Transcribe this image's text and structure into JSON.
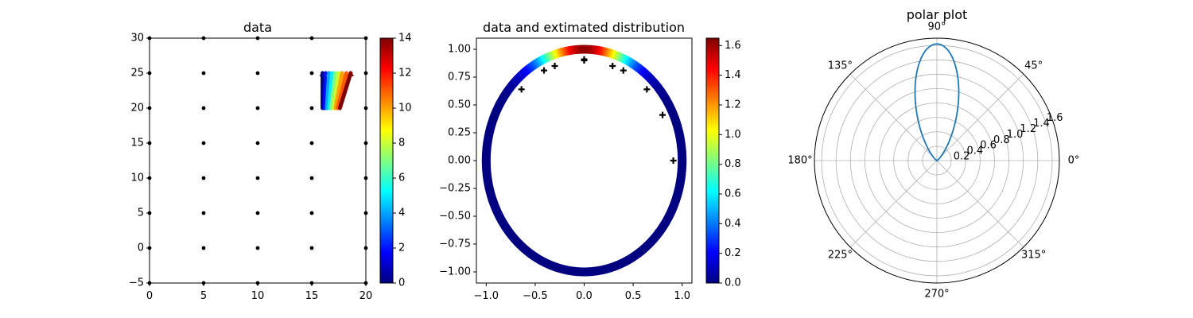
{
  "chart_data": [
    {
      "type": "scatter",
      "title": "data",
      "xlim": [
        0,
        20
      ],
      "ylim": [
        -5,
        30
      ],
      "xticks": [
        0,
        5,
        10,
        15,
        20
      ],
      "yticks": [
        -5,
        0,
        5,
        10,
        15,
        20,
        25,
        30
      ],
      "grid": false,
      "series": [
        {
          "marker": "dot",
          "color": "#000000",
          "x": [
            0,
            5,
            10,
            15,
            20,
            0,
            5,
            10,
            15,
            20,
            0,
            5,
            10,
            15,
            20,
            0,
            5,
            10,
            15,
            20,
            0,
            5,
            10,
            15,
            20,
            0,
            5,
            10,
            15,
            20,
            0,
            5,
            10,
            15,
            20,
            0,
            5,
            10,
            15,
            20
          ],
          "y": [
            -5,
            -5,
            -5,
            -5,
            -5,
            0,
            0,
            0,
            0,
            0,
            5,
            5,
            5,
            5,
            5,
            10,
            10,
            10,
            10,
            10,
            15,
            15,
            15,
            15,
            15,
            20,
            20,
            20,
            20,
            20,
            25,
            25,
            25,
            25,
            25,
            30,
            30,
            30,
            30,
            30
          ]
        }
      ],
      "fan_arrows": {
        "colormap": "jet",
        "origins_x": [
          16.0,
          16.2,
          16.4,
          16.6,
          16.8,
          17.0,
          17.2,
          17.4,
          17.6
        ],
        "base_y": 20,
        "top_y": 25,
        "colors": [
          0,
          2,
          4,
          5,
          7,
          8,
          10,
          11,
          14
        ],
        "lean": [
          0.0,
          0.1,
          0.2,
          0.3,
          0.4,
          0.5,
          0.6,
          0.8,
          1.0
        ]
      },
      "colorbar": {
        "min": 0,
        "max": 14,
        "ticks": [
          0,
          2,
          4,
          6,
          8,
          10,
          12,
          14
        ],
        "colormap": "jet"
      }
    },
    {
      "type": "scatter",
      "title": "data and extimated distribution",
      "xlim": [
        -1.1,
        1.1
      ],
      "ylim": [
        -1.1,
        1.1
      ],
      "xticks": [
        -1.0,
        -0.5,
        0.0,
        0.5,
        1.0
      ],
      "xtick_labels": [
        "−1.0",
        "−0.5",
        "0.0",
        "0.5",
        "1.0"
      ],
      "yticks": [
        -1.0,
        -0.75,
        -0.5,
        -0.25,
        0.0,
        0.25,
        0.5,
        0.75,
        1.0
      ],
      "ytick_labels": [
        "−1.00",
        "−0.75",
        "−0.50",
        "−0.25",
        "0.00",
        "0.25",
        "0.50",
        "0.75",
        "1.00"
      ],
      "grid": false,
      "ring": {
        "radius": 1.0,
        "colormap": "jet",
        "peak_angle_deg": 90,
        "peak_value": 1.62,
        "spread": 18
      },
      "series": [
        {
          "marker": "plus",
          "color": "#000000",
          "x": [
            -0.64,
            -0.41,
            -0.3,
            0.0,
            0.0,
            0.29,
            0.4,
            0.64,
            0.8,
            0.91
          ],
          "y": [
            0.64,
            0.81,
            0.85,
            0.9,
            0.91,
            0.85,
            0.81,
            0.64,
            0.41,
            0.0
          ]
        }
      ],
      "colorbar": {
        "min": 0.0,
        "max": 1.65,
        "ticks": [
          0.0,
          0.2,
          0.4,
          0.6,
          0.8,
          1.0,
          1.2,
          1.4,
          1.6
        ],
        "tick_labels": [
          "0.0",
          "0.2",
          "0.4",
          "0.6",
          "0.8",
          "1.0",
          "1.2",
          "1.4",
          "1.6"
        ],
        "colormap": "jet"
      }
    },
    {
      "type": "line",
      "projection": "polar",
      "title": "polar plot",
      "rmax": 1.7,
      "rticks": [
        0.2,
        0.4,
        0.6,
        0.8,
        1.0,
        1.2,
        1.4,
        1.6
      ],
      "rtick_labels": [
        "0.2",
        "0.4",
        "0.6",
        "0.8",
        "1.0",
        "1.2",
        "1.4",
        "1.6"
      ],
      "theta_ticks": [
        0,
        45,
        90,
        135,
        180,
        225,
        270,
        315
      ],
      "theta_labels": [
        "0°",
        "45°",
        "90°",
        "135°",
        "180°",
        "225°",
        "270°",
        "315°"
      ],
      "grid": true,
      "series": [
        {
          "color": "#1f77b4",
          "peak_angle_deg": 90,
          "peak_value": 1.62,
          "spread": 18
        }
      ]
    }
  ]
}
